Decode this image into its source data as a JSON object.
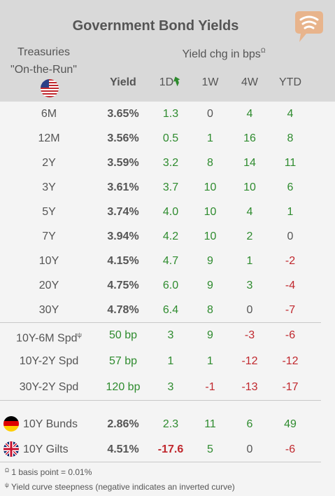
{
  "title": "Government Bond Yields",
  "treasuries_label_line1": "Treasuries",
  "treasuries_label_line2": "\"On-the-Run\"",
  "yield_chg_label": "Yield chg in bps",
  "yield_chg_marker": "Ω",
  "columns": {
    "yield": "Yield",
    "d1": "1D",
    "w1": "1W",
    "w4": "4W",
    "ytd": "YTD"
  },
  "treasuries": [
    {
      "label": "6M",
      "yield": "3.65%",
      "d1": "1.3",
      "w1": "0",
      "w4": "4",
      "ytd": "4"
    },
    {
      "label": "12M",
      "yield": "3.56%",
      "d1": "0.5",
      "w1": "1",
      "w4": "16",
      "ytd": "8"
    },
    {
      "label": "2Y",
      "yield": "3.59%",
      "d1": "3.2",
      "w1": "8",
      "w4": "14",
      "ytd": "11"
    },
    {
      "label": "3Y",
      "yield": "3.61%",
      "d1": "3.7",
      "w1": "10",
      "w4": "10",
      "ytd": "6"
    },
    {
      "label": "5Y",
      "yield": "3.74%",
      "d1": "4.0",
      "w1": "10",
      "w4": "4",
      "ytd": "1"
    },
    {
      "label": "7Y",
      "yield": "3.94%",
      "d1": "4.2",
      "w1": "10",
      "w4": "2",
      "ytd": "0"
    },
    {
      "label": "10Y",
      "yield": "4.15%",
      "d1": "4.7",
      "w1": "9",
      "w4": "1",
      "ytd": "-2"
    },
    {
      "label": "20Y",
      "yield": "4.75%",
      "d1": "6.0",
      "w1": "9",
      "w4": "3",
      "ytd": "-4"
    },
    {
      "label": "30Y",
      "yield": "4.78%",
      "d1": "6.4",
      "w1": "8",
      "w4": "0",
      "ytd": "-7"
    }
  ],
  "spreads": [
    {
      "label": "10Y-6M Spd",
      "marker": "ψ",
      "yield": "50 bp",
      "d1": "3",
      "w1": "9",
      "w4": "-3",
      "ytd": "-6"
    },
    {
      "label": "10Y-2Y Spd",
      "marker": "",
      "yield": "57 bp",
      "d1": "1",
      "w1": "1",
      "w4": "-12",
      "ytd": "-12"
    },
    {
      "label": "30Y-2Y Spd",
      "marker": "",
      "yield": "120 bp",
      "d1": "3",
      "w1": "-1",
      "w4": "-13",
      "ytd": "-17"
    }
  ],
  "international": [
    {
      "label": "10Y Bunds",
      "flag": "germany-flag-icon",
      "yield": "2.86%",
      "d1": "2.3",
      "w1": "11",
      "w4": "6",
      "ytd": "49"
    },
    {
      "label": "10Y Gilts",
      "flag": "uk-flag-icon",
      "yield": "4.51%",
      "d1": "-17.6",
      "w1": "5",
      "w4": "0",
      "ytd": "-6"
    }
  ],
  "footnotes": [
    {
      "marker": "Ω",
      "text": " 1 basis point = 0.01%"
    },
    {
      "marker": "ψ",
      "text": " Yield curve steepness (negative indicates an inverted curve)"
    }
  ],
  "colors": {
    "positive": "#2e8b2e",
    "negative": "#c0272d",
    "header_bg": "#d9d9d9",
    "body_bg": "#f4f4f4",
    "logo": "#e8b48c"
  }
}
